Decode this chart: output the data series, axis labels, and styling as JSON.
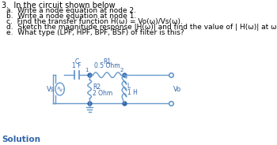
{
  "title_line": "3.  In the circuit shown below",
  "items": [
    "a.  Write a node equation at node 2.",
    "b.  Write a node equation at node 1.",
    "c.  Find the transfer function H(ω) = Vo(ω)/Vs(ω).",
    "d.  Sketch the magnitude response |H(ω)| and find the value of | H(ω)| at ω = ∞.",
    "e.  What type (LPF, HPF, BPF, BSF) of filter is this?"
  ],
  "solution_label": "Solution",
  "circuit": {
    "wire_color": "#6699cc",
    "dot_color": "#3366aa",
    "text_color": "#3366aa",
    "cap_label": "1 F",
    "cap_sublabel": "C",
    "r1_label": "0.5 Ohm",
    "r1_sublabel": "R1",
    "r2_label": "R2",
    "r2_sublabel": "2 Ohm",
    "l_label": "L",
    "l_sublabel": "1 H",
    "vs_label": "Vs",
    "vo_label": "Vo",
    "node1_label": "1",
    "node2_label": "2"
  },
  "font_size_title": 7.0,
  "font_size_items": 6.5,
  "font_size_solution": 7.5,
  "font_size_circuit": 5.5
}
